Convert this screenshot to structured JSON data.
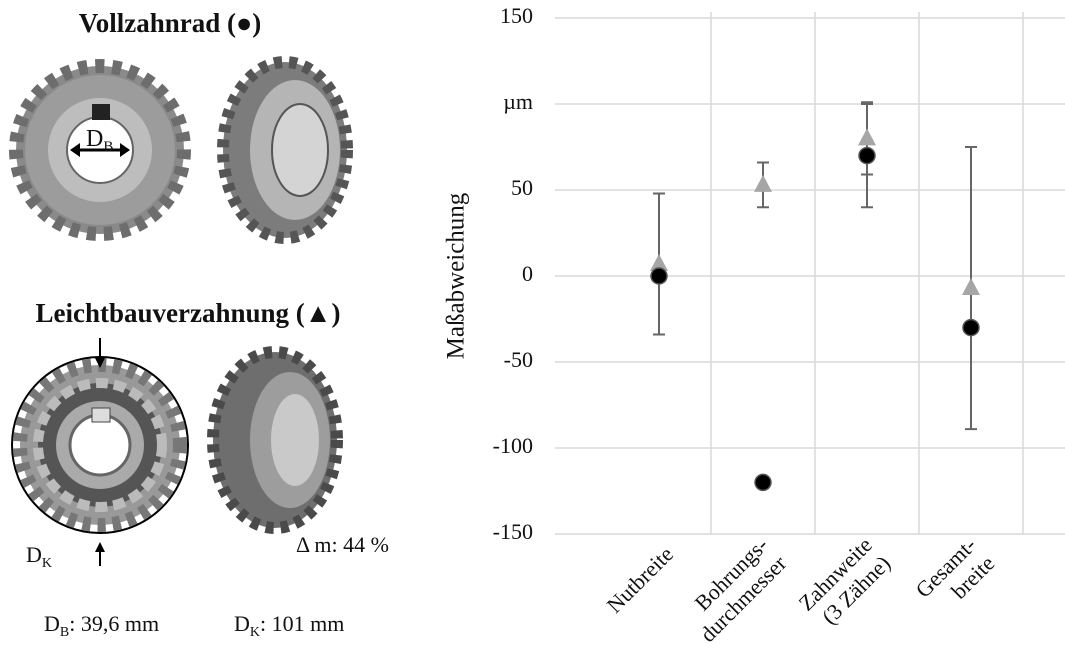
{
  "chart_data": {
    "type": "scatter",
    "ylabel": "Maßabweichung",
    "categories": [
      "Nutbreite",
      "Bohrungs-\ndurchmesser",
      "Zahnweite\n(3 Zähne)",
      "Gesamt-\nbreite"
    ],
    "ylim": [
      -150,
      150
    ],
    "yticks": [
      -150,
      -100,
      -50,
      0,
      50,
      {
        "value": 100,
        "label": "µm"
      },
      150
    ],
    "grid": true,
    "series": [
      {
        "name": "Vollzahnrad (●)",
        "marker": "circle",
        "color": "#000000",
        "values": [
          0,
          -120,
          70,
          -30
        ],
        "errors": [
          null,
          null,
          30,
          null
        ]
      },
      {
        "name": "Leichtbauverzahnung (▲)",
        "marker": "triangle",
        "color": "#a6a6a6",
        "values": [
          7,
          53,
          80,
          -7
        ],
        "errors": [
          41,
          13,
          21,
          82
        ]
      }
    ]
  },
  "annotations": {
    "db_arrow": {
      "main": "D",
      "sub": "B"
    },
    "dk_label": {
      "main": "D",
      "sub": "K"
    },
    "mass": "Δ m: 44 %",
    "db_value": {
      "main": "D",
      "sub": "B",
      "rest": ": 39,6 mm"
    },
    "dk_value": {
      "main": "D",
      "sub": "K",
      "rest": ": 101 mm"
    }
  }
}
